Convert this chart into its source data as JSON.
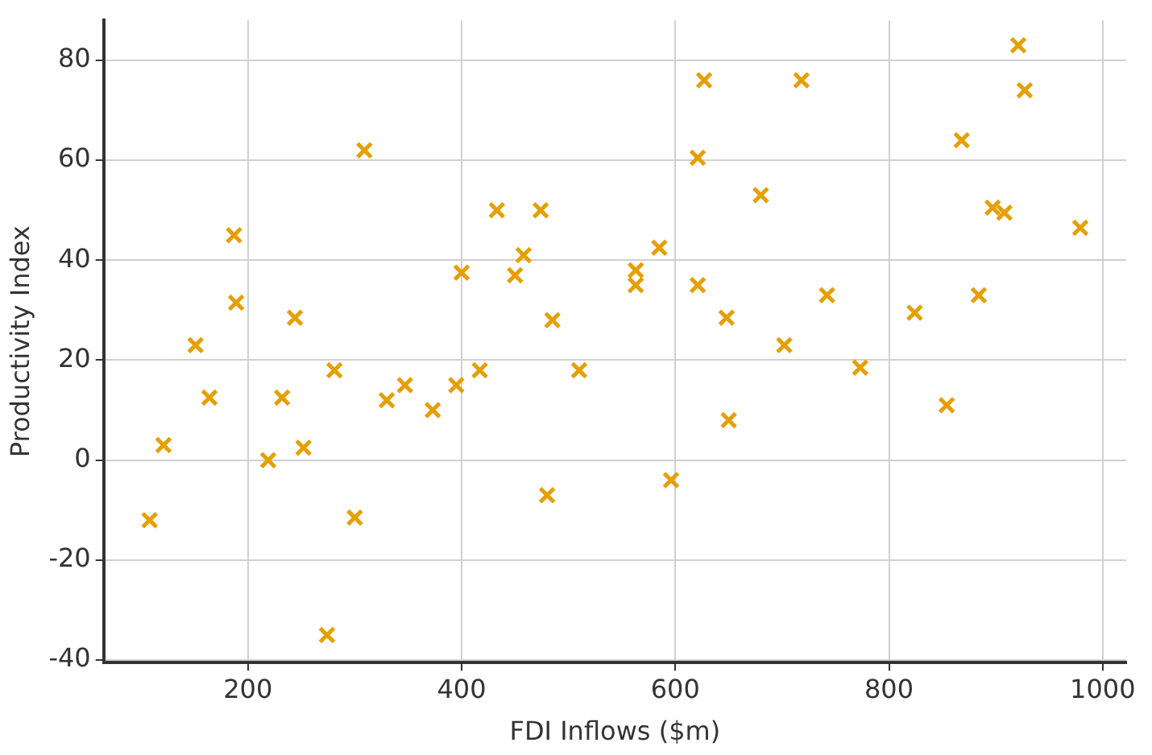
{
  "chart_data": {
    "type": "scatter",
    "xlabel": "FDI Inflows ($m)",
    "ylabel": "Productivity Index",
    "xlim": [
      65,
      1022
    ],
    "ylim": [
      -40.5,
      88
    ],
    "xticks": [
      200,
      400,
      600,
      800,
      1000
    ],
    "yticks": [
      -40,
      -20,
      0,
      20,
      40,
      60,
      80
    ],
    "grid": true,
    "marker": "cross",
    "legend": false,
    "series": [
      {
        "color": "#e69f00",
        "x": [
          108,
          121,
          151,
          164,
          187,
          189,
          219,
          232,
          244,
          252,
          281,
          274,
          300,
          309,
          330,
          347,
          373,
          395,
          400,
          417,
          433,
          450,
          458,
          474,
          480,
          485,
          510,
          563,
          563,
          585,
          596,
          621,
          621,
          627,
          648,
          650,
          680,
          702,
          718,
          742,
          773,
          824,
          854,
          868,
          884,
          897,
          908,
          921,
          927,
          979
        ],
        "values": [
          -12,
          3,
          23,
          12.5,
          45,
          31.5,
          0,
          12.5,
          28.5,
          2.5,
          18,
          -35,
          -11.5,
          62,
          12,
          15,
          10,
          15,
          37.5,
          18,
          50,
          37,
          41,
          50,
          -7,
          28,
          18,
          35,
          38,
          42.5,
          -4,
          60.5,
          35,
          76,
          28.5,
          8,
          53,
          23,
          76,
          33,
          18.5,
          29.5,
          11,
          64,
          33,
          50.5,
          49.5,
          83,
          74,
          46.5
        ]
      }
    ]
  }
}
